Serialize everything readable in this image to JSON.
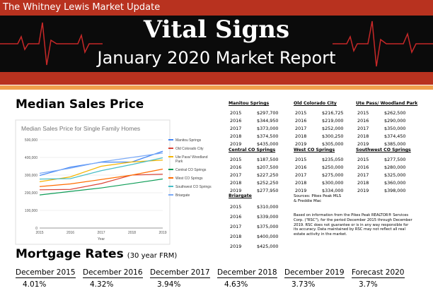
{
  "header": {
    "brand": "The Whitney Lewis Market Update",
    "title": "Vital Signs",
    "subtitle": "January 2020 Market Report"
  },
  "median_section": {
    "heading": "Median Sales Price"
  },
  "chart_data": {
    "type": "line",
    "title": "Median Sales Price for Single Family Homes",
    "x_label": "Year",
    "categories": [
      "2015",
      "2016",
      "2017",
      "2018",
      "2019"
    ],
    "ylim": [
      0,
      500000
    ],
    "yticks": [
      0,
      {
        "value": 100000,
        "label": "100,000"
      },
      {
        "value": 200000,
        "label": "200,000"
      },
      {
        "value": 300000,
        "label": "300,000"
      },
      {
        "value": 400000,
        "label": "400,000"
      },
      {
        "value": 500000,
        "label": "500,000"
      }
    ],
    "grid": true,
    "legend": "right",
    "series": [
      {
        "name": "Manitou Springs",
        "color": "#4285f4",
        "values": [
          297700,
          344950,
          373000,
          374500,
          435000
        ]
      },
      {
        "name": "Old Colorado City",
        "color": "#db4437",
        "values": [
          216725,
          219000,
          252000,
          300250,
          305000
        ]
      },
      {
        "name": "Ute Pass/ Woodland Park",
        "color": "#f4b400",
        "values": [
          262500,
          290000,
          350000,
          374450,
          385000
        ]
      },
      {
        "name": "Central CO Springs",
        "color": "#0f9d58",
        "values": [
          187500,
          207500,
          227250,
          252250,
          277950
        ]
      },
      {
        "name": "West CO Springs",
        "color": "#ff6d00",
        "values": [
          235050,
          250000,
          275000,
          300000,
          334000
        ]
      },
      {
        "name": "Southwest CO Springs",
        "color": "#46bdc6",
        "values": [
          277500,
          280000,
          325000,
          360000,
          398000
        ]
      },
      {
        "name": "Briargate",
        "color": "#7baaf7",
        "values": [
          310000,
          339000,
          375000,
          400000,
          425000
        ]
      }
    ]
  },
  "regions": [
    {
      "name": "Manitou Springs",
      "rows": [
        [
          "2015",
          "$297,700"
        ],
        [
          "2016",
          "$344,950"
        ],
        [
          "2017",
          "$373,000"
        ],
        [
          "2018",
          "$374,500"
        ],
        [
          "2019",
          "$435,000"
        ]
      ]
    },
    {
      "name": "Old Colorado City",
      "rows": [
        [
          "2015",
          "$216,725"
        ],
        [
          "2016",
          "$219,000"
        ],
        [
          "2017",
          "$252,000"
        ],
        [
          "2018",
          "$300,250"
        ],
        [
          "2019",
          "$305,000"
        ]
      ]
    },
    {
      "name": "Ute Pass/ Woodland Park",
      "rows": [
        [
          "2015",
          "$262,500"
        ],
        [
          "2016",
          "$290,000"
        ],
        [
          "2017",
          "$350,000"
        ],
        [
          "2018",
          "$374,450"
        ],
        [
          "2019",
          "$385,000"
        ]
      ]
    },
    {
      "name": "Central CO Springs",
      "rows": [
        [
          "2015",
          "$187,500"
        ],
        [
          "2016",
          "$207,500"
        ],
        [
          "2017",
          "$227,250"
        ],
        [
          "2018",
          "$252,250"
        ],
        [
          "2019",
          "$277,950"
        ]
      ]
    },
    {
      "name": "West CO Springs",
      "rows": [
        [
          "2015",
          "$235,050"
        ],
        [
          "2016",
          "$250,000"
        ],
        [
          "2017",
          "$275,000"
        ],
        [
          "2018",
          "$300,000"
        ],
        [
          "2019",
          "$334,000"
        ]
      ]
    },
    {
      "name": "Southwest CO Springs",
      "rows": [
        [
          "2015",
          "$277,500"
        ],
        [
          "2016",
          "$280,000"
        ],
        [
          "2017",
          "$325,000"
        ],
        [
          "2018",
          "$360,000"
        ],
        [
          "2019",
          "$398,000"
        ]
      ]
    },
    {
      "name": "Briargate",
      "rows": [
        [
          "2015",
          "$310,000"
        ],
        [
          "2016",
          "$339,000"
        ],
        [
          "2017",
          "$375,000"
        ],
        [
          "2018",
          "$400,000"
        ],
        [
          "2019",
          "$425,000"
        ]
      ]
    }
  ],
  "sources": "Sources: Pikes Peak MLS & Freddie Mac",
  "disclaimer": "Based on information from the Pikes Peak REALTOR® Services Corp. (\"RSC\"), for the period December 2015 through December 2019. RSC does not guarantee or is in any way responsible for its accuracy. Data maintained by RSC may not reflect all real estate activity in the market.",
  "mortgage": {
    "heading": "Mortgage Rates",
    "note": "(30 year FRM)",
    "items": [
      {
        "label": "December 2015",
        "value": "4.01%"
      },
      {
        "label": "December 2016",
        "value": "4.32%"
      },
      {
        "label": "December 2017",
        "value": "3.94%"
      },
      {
        "label": "December 2018",
        "value": "4.63%"
      },
      {
        "label": "December 2019",
        "value": "3.73%"
      },
      {
        "label": "Forecast 2020",
        "value": "3.7%"
      }
    ]
  }
}
